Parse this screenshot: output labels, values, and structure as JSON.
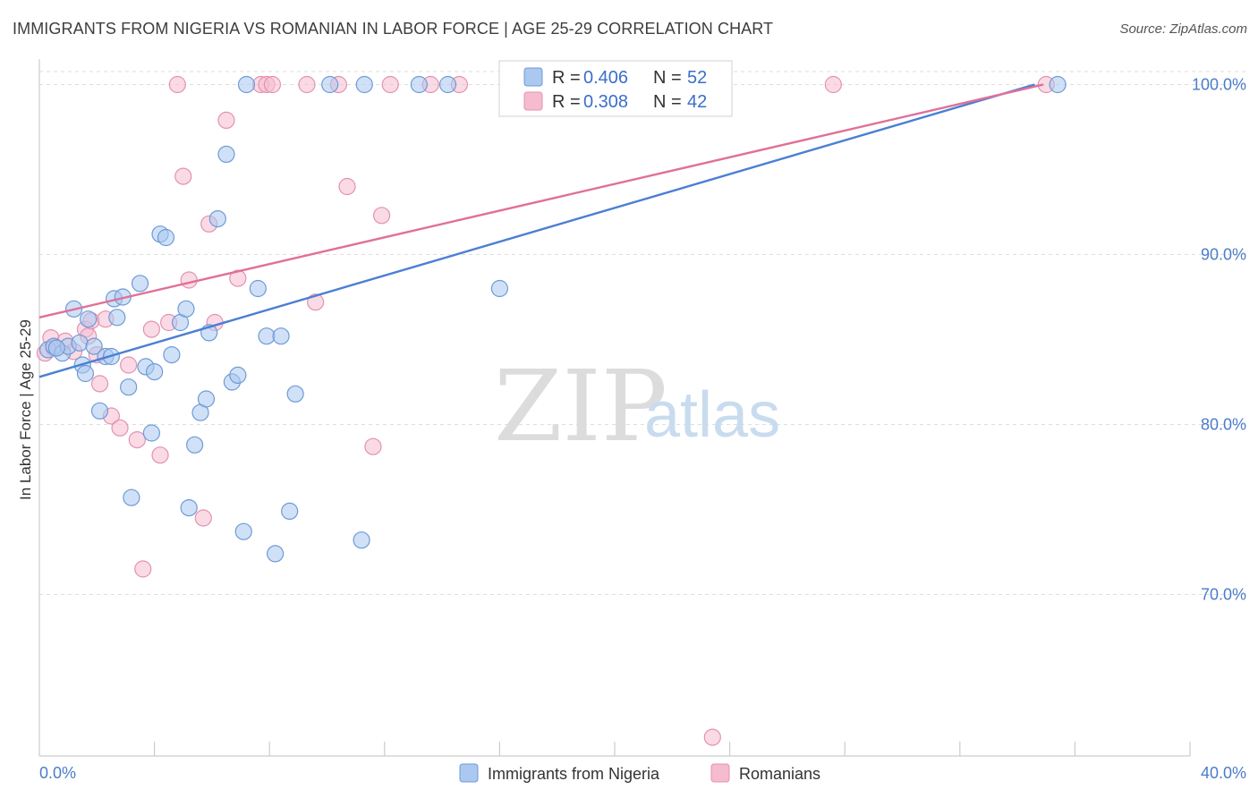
{
  "header": {
    "title": "IMMIGRANTS FROM NIGERIA VS ROMANIAN IN LABOR FORCE | AGE 25-29 CORRELATION CHART",
    "source": "Source: ZipAtlas.com"
  },
  "watermark": {
    "zip": "ZIP",
    "atlas": "atlas"
  },
  "colors": {
    "blue": "#4a7fd4",
    "blue_fill": "#aac8f0",
    "pink": "#e07098",
    "pink_fill": "#f5bcd0",
    "axis_label": "#4a7cc9"
  },
  "legend_top": {
    "rows": [
      {
        "r_label": "R = ",
        "r_value": "0.406",
        "n_label": "N = ",
        "n_value": "52"
      },
      {
        "r_label": "R = ",
        "r_value": "0.308",
        "n_label": "N = ",
        "n_value": "42"
      }
    ]
  },
  "legend_bottom": {
    "series_a": "Immigrants from Nigeria",
    "series_b": "Romanians"
  },
  "chart_data": {
    "type": "scatter",
    "title": "IMMIGRANTS FROM NIGERIA VS ROMANIAN IN LABOR FORCE | AGE 25-29 CORRELATION CHART",
    "xlabel": "",
    "ylabel": "In Labor Force | Age 25-29",
    "xlim": [
      0,
      40
    ],
    "ylim": [
      60.5,
      101.5
    ],
    "x_tick_labels": [
      "0.0%",
      "40.0%"
    ],
    "y_ticks": [
      70,
      80,
      90,
      100
    ],
    "y_tick_labels": [
      "70.0%",
      "80.0%",
      "90.0%",
      "100.0%"
    ],
    "series": [
      {
        "name": "Immigrants from Nigeria",
        "color": "blue",
        "r": 0.406,
        "n": 52,
        "trend": {
          "x": [
            0,
            34.6
          ],
          "y": [
            82.8,
            100.0
          ]
        },
        "points": [
          [
            0.3,
            84.4
          ],
          [
            0.5,
            84.6
          ],
          [
            0.8,
            84.2
          ],
          [
            1.0,
            84.6
          ],
          [
            0.6,
            84.5
          ],
          [
            1.2,
            86.8
          ],
          [
            1.4,
            84.8
          ],
          [
            1.5,
            83.5
          ],
          [
            1.6,
            83.0
          ],
          [
            1.7,
            86.2
          ],
          [
            1.9,
            84.6
          ],
          [
            2.1,
            80.8
          ],
          [
            2.3,
            84.0
          ],
          [
            2.5,
            84.0
          ],
          [
            2.6,
            87.4
          ],
          [
            2.7,
            86.3
          ],
          [
            2.9,
            87.5
          ],
          [
            3.1,
            82.2
          ],
          [
            3.2,
            75.7
          ],
          [
            3.5,
            88.3
          ],
          [
            3.7,
            83.4
          ],
          [
            3.9,
            79.5
          ],
          [
            4.0,
            83.1
          ],
          [
            4.2,
            91.2
          ],
          [
            4.4,
            91.0
          ],
          [
            4.6,
            84.1
          ],
          [
            4.9,
            86.0
          ],
          [
            5.1,
            86.8
          ],
          [
            5.2,
            75.1
          ],
          [
            5.4,
            78.8
          ],
          [
            5.6,
            80.7
          ],
          [
            5.8,
            81.5
          ],
          [
            5.9,
            85.4
          ],
          [
            6.2,
            92.1
          ],
          [
            6.5,
            95.9
          ],
          [
            6.7,
            82.5
          ],
          [
            6.9,
            82.9
          ],
          [
            7.1,
            73.7
          ],
          [
            7.2,
            100.0
          ],
          [
            7.6,
            88.0
          ],
          [
            7.9,
            85.2
          ],
          [
            8.2,
            72.4
          ],
          [
            8.4,
            85.2
          ],
          [
            8.7,
            74.9
          ],
          [
            8.9,
            81.8
          ],
          [
            10.1,
            100.0
          ],
          [
            11.2,
            73.2
          ],
          [
            11.3,
            100.0
          ],
          [
            13.2,
            100.0
          ],
          [
            14.2,
            100.0
          ],
          [
            16.0,
            88.0
          ],
          [
            35.4,
            100.0
          ]
        ]
      },
      {
        "name": "Romanians",
        "color": "pink",
        "r": 0.308,
        "n": 42,
        "trend": {
          "x": [
            0,
            34.9
          ],
          "y": [
            86.3,
            100.0
          ]
        },
        "points": [
          [
            0.2,
            84.2
          ],
          [
            0.4,
            85.1
          ],
          [
            0.5,
            84.5
          ],
          [
            0.9,
            84.9
          ],
          [
            1.2,
            84.3
          ],
          [
            1.6,
            85.6
          ],
          [
            1.7,
            85.2
          ],
          [
            1.8,
            86.1
          ],
          [
            2.0,
            84.1
          ],
          [
            2.1,
            82.4
          ],
          [
            2.3,
            86.2
          ],
          [
            2.5,
            80.5
          ],
          [
            2.8,
            79.8
          ],
          [
            3.1,
            83.5
          ],
          [
            3.4,
            79.1
          ],
          [
            3.6,
            71.5
          ],
          [
            3.9,
            85.6
          ],
          [
            4.2,
            78.2
          ],
          [
            4.5,
            86.0
          ],
          [
            4.8,
            100.0
          ],
          [
            5.0,
            94.6
          ],
          [
            5.2,
            88.5
          ],
          [
            5.7,
            74.5
          ],
          [
            5.9,
            91.8
          ],
          [
            6.1,
            86.0
          ],
          [
            6.5,
            97.9
          ],
          [
            6.9,
            88.6
          ],
          [
            7.7,
            100.0
          ],
          [
            7.9,
            100.0
          ],
          [
            8.1,
            100.0
          ],
          [
            9.3,
            100.0
          ],
          [
            9.6,
            87.2
          ],
          [
            10.4,
            100.0
          ],
          [
            10.7,
            94.0
          ],
          [
            11.6,
            78.7
          ],
          [
            11.9,
            92.3
          ],
          [
            12.2,
            100.0
          ],
          [
            13.6,
            100.0
          ],
          [
            14.6,
            100.0
          ],
          [
            23.4,
            61.6
          ],
          [
            27.6,
            100.0
          ],
          [
            35.0,
            100.0
          ]
        ]
      }
    ]
  }
}
